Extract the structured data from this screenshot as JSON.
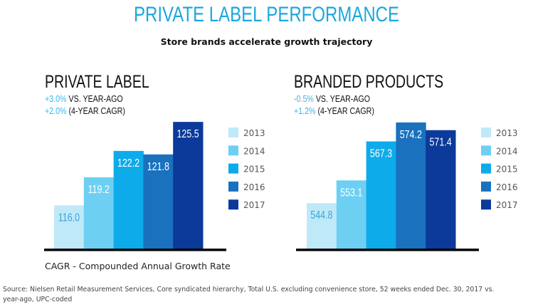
{
  "header": {
    "title": "PRIVATE LABEL PERFORMANCE",
    "subtitle": "Store brands accelerate growth trajectory"
  },
  "colors": {
    "title": "#1ba7e0",
    "stat_value": "#3fb3e6",
    "series": [
      "#bfe9f8",
      "#6dd0f3",
      "#0eabea",
      "#1a71be",
      "#0b3a9a"
    ],
    "label_dark_on_light": "#3aa5d9",
    "label_light": "#ffffff"
  },
  "panels": [
    {
      "title": "PRIVATE LABEL",
      "stats": [
        {
          "value": "+3.0%",
          "label": "VS. YEAR-AGO"
        },
        {
          "value": "+2.0%",
          "label": "(4-YEAR CAGR)"
        }
      ]
    },
    {
      "title": "BRANDED PRODUCTS",
      "stats": [
        {
          "value": "-0.5%",
          "label": "VS. YEAR-AGO"
        },
        {
          "value": "+1.2%",
          "label": "(4-YEAR CAGR)"
        }
      ]
    }
  ],
  "footnote": "CAGR - Compounded Annual Growth Rate",
  "source": "Source: Nielsen Retail Measurement Services, Core syndicated hierarchy, Total U.S. excluding convenience store, 52 weeks ended Dec. 30, 2017 vs. year-ago, UPC-coded",
  "chart_data": [
    {
      "type": "bar",
      "title": "PRIVATE LABEL",
      "categories": [
        "2013",
        "2014",
        "2015",
        "2016",
        "2017"
      ],
      "values": [
        116.0,
        119.2,
        122.2,
        121.8,
        125.5
      ],
      "value_labels": [
        "116.0",
        "119.2",
        "122.2",
        "121.8",
        "125.5"
      ],
      "legend": [
        "2013",
        "2014",
        "2015",
        "2016",
        "2017"
      ],
      "legend_position": "right",
      "xlabel": "",
      "ylabel": "",
      "ylim": [
        111,
        126
      ],
      "grid": false
    },
    {
      "type": "bar",
      "title": "BRANDED PRODUCTS",
      "categories": [
        "2013",
        "2014",
        "2015",
        "2016",
        "2017"
      ],
      "values": [
        544.8,
        553.1,
        567.3,
        574.2,
        571.4
      ],
      "value_labels": [
        "544.8",
        "553.1",
        "567.3",
        "574.2",
        "571.4"
      ],
      "legend": [
        "2013",
        "2014",
        "2015",
        "2016",
        "2017"
      ],
      "legend_position": "right",
      "xlabel": "",
      "ylabel": "",
      "ylim": [
        528,
        576
      ],
      "grid": false
    }
  ]
}
